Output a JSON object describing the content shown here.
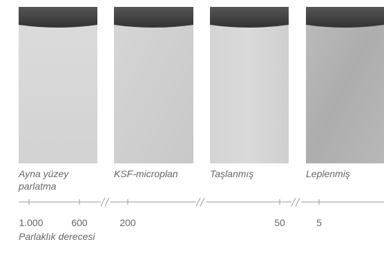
{
  "panels": [
    {
      "label": [
        "Ayna yüzey",
        "parlatma"
      ]
    },
    {
      "label": [
        "KSF-microplan"
      ]
    },
    {
      "label": [
        "Taşlanmış"
      ]
    },
    {
      "label": [
        "Leplenmiş"
      ]
    }
  ],
  "scale": {
    "ticks": [
      "1.000",
      "600",
      "200",
      "50",
      "5"
    ],
    "title": "Parlaklık derecesi"
  }
}
